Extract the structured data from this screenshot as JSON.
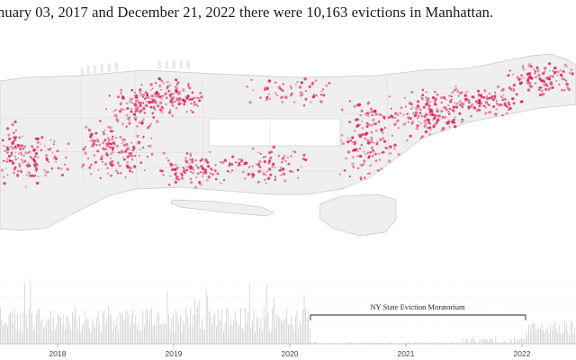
{
  "headline": "nuary 03, 2017 and December 21, 2022 there were 10,163 evictions in Manhattan.",
  "map": {
    "land_color": "#efefef",
    "border_color": "#c8c8c8",
    "dot_color": "#e0195a"
  },
  "timeline": {
    "years": [
      "2018",
      "2019",
      "2020",
      "2021",
      "2022"
    ],
    "bar_color": "#cfcfcf",
    "annotation": {
      "label": "NY State Eviction Moratorium",
      "color": "#222222"
    }
  }
}
